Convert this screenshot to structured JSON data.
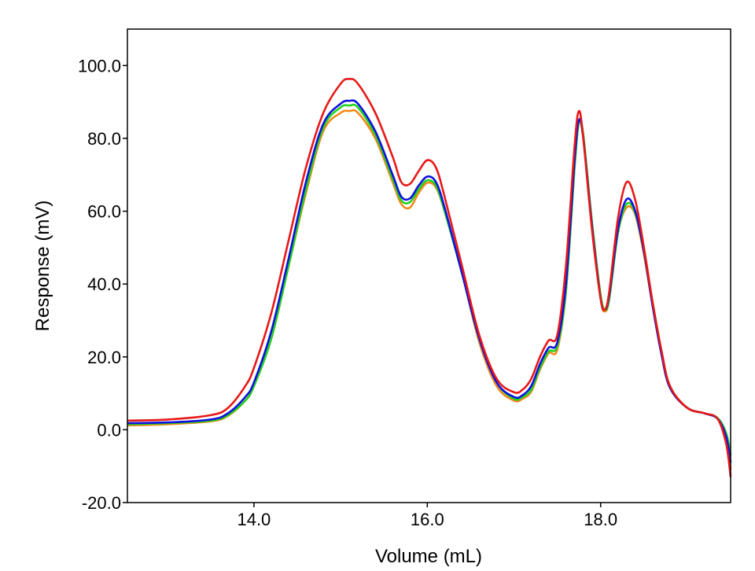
{
  "chart_data": {
    "type": "line",
    "title": "",
    "xlabel": "Volume (mL)",
    "ylabel": "Response (mV)",
    "xlim": [
      12.54,
      19.5
    ],
    "ylim": [
      -20,
      110
    ],
    "grid": false,
    "legend": "none",
    "x_ticks": [
      14.0,
      16.0,
      18.0
    ],
    "x_tick_labels": [
      "14.0",
      "16.0",
      "18.0"
    ],
    "y_ticks": [
      100,
      80,
      60,
      40,
      20,
      0,
      -20
    ],
    "y_tick_labels": [
      "100.0",
      "80.0",
      "60.0",
      "40.0",
      "20.0",
      "0.0",
      "-20.0"
    ],
    "x": [
      12.54,
      13.0,
      13.5,
      13.7,
      13.9,
      14.0,
      14.2,
      14.4,
      14.6,
      14.8,
      15.0,
      15.1,
      15.2,
      15.4,
      15.6,
      15.7,
      15.8,
      15.9,
      16.0,
      16.1,
      16.2,
      16.4,
      16.6,
      16.8,
      17.0,
      17.1,
      17.2,
      17.3,
      17.4,
      17.5,
      17.6,
      17.7,
      17.75,
      17.8,
      17.9,
      18.0,
      18.05,
      18.1,
      18.2,
      18.3,
      18.4,
      18.5,
      18.6,
      18.7,
      18.8,
      19.0,
      19.2,
      19.35,
      19.45,
      19.5
    ],
    "series": [
      {
        "name": "orange",
        "color": "#f08a1c",
        "values": [
          1.2,
          1.5,
          2.3,
          3.8,
          8,
          12,
          25,
          45,
          65,
          82,
          87,
          87.5,
          87,
          80,
          68,
          62,
          61,
          65,
          67.8,
          66.5,
          60,
          43,
          24,
          12,
          8,
          8.5,
          10.5,
          16.5,
          21,
          22,
          38,
          72,
          84.5,
          80,
          57,
          36,
          32.5,
          36,
          54,
          61,
          59,
          48,
          34,
          21,
          11.5,
          6,
          4.5,
          3,
          -3,
          -11
        ]
      },
      {
        "name": "green",
        "color": "#1fd21f",
        "values": [
          1.5,
          1.8,
          2.5,
          4,
          8,
          12,
          25,
          45,
          66,
          83,
          88.5,
          89,
          88.5,
          81,
          69,
          63,
          62.5,
          66,
          68.5,
          67,
          60,
          43,
          25,
          13,
          8.5,
          9,
          11,
          17,
          21.5,
          23,
          38,
          72,
          84.5,
          81,
          57,
          37,
          33,
          36,
          54,
          62,
          59.5,
          49,
          35,
          22,
          12,
          6,
          4.5,
          3.2,
          -1,
          -7
        ]
      },
      {
        "name": "blue",
        "color": "#1010e0",
        "values": [
          1.8,
          2,
          2.8,
          4.5,
          9,
          13,
          27,
          47,
          68,
          84,
          89.5,
          90.3,
          89.5,
          82,
          70,
          64,
          63.5,
          67,
          69.5,
          68,
          61,
          43,
          25,
          13,
          9,
          9.5,
          12,
          18,
          22.5,
          24,
          40,
          74,
          85,
          80,
          56,
          36,
          33,
          37,
          55,
          63.3,
          60,
          49,
          34,
          21,
          11.5,
          6,
          4.5,
          3,
          -2,
          -9
        ]
      },
      {
        "name": "red",
        "color": "#e81818",
        "values": [
          2.5,
          2.8,
          4,
          6,
          12,
          17,
          32,
          52,
          72,
          87,
          95,
          96.3,
          95,
          87,
          75,
          68,
          67.5,
          71,
          74,
          72,
          64,
          45,
          26,
          14,
          10.3,
          11,
          14,
          20,
          24.5,
          26,
          45,
          78,
          87.5,
          80,
          55,
          36,
          33,
          38,
          58,
          68,
          63,
          50,
          35,
          22,
          12,
          6,
          4.5,
          3,
          -4,
          -13
        ]
      }
    ]
  }
}
